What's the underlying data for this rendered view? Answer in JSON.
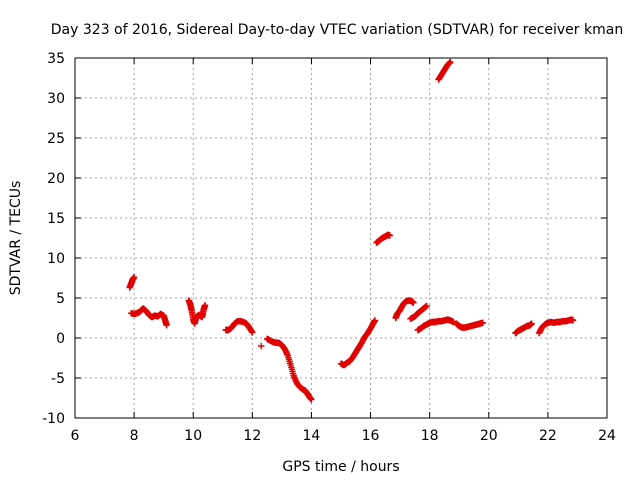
{
  "chart_data": {
    "type": "scatter",
    "title": "Day 323 of 2016, Sidereal Day-to-day VTEC variation (SDTVAR) for receiver kman",
    "xlabel": "GPS time / hours",
    "ylabel": "SDTVAR / TECUs",
    "xlim": [
      6,
      24
    ],
    "ylim": [
      -10,
      35
    ],
    "xticks": [
      6,
      8,
      10,
      12,
      14,
      16,
      18,
      20,
      22,
      24
    ],
    "yticks": [
      -10,
      -5,
      0,
      5,
      10,
      15,
      20,
      25,
      30,
      35
    ],
    "xtick_labels": [
      "6",
      "8",
      "10",
      "12",
      "14",
      "16",
      "18",
      "20",
      "22",
      "24"
    ],
    "ytick_labels": [
      "-10",
      "-5",
      "0",
      "5",
      "10",
      "15",
      "20",
      "25",
      "30",
      "35"
    ],
    "grid": true,
    "marker": "+",
    "color": "#e00000",
    "series": [
      {
        "name": "kman",
        "segments": [
          [
            [
              7.85,
              6.3
            ],
            [
              7.9,
              6.8
            ],
            [
              7.95,
              7.3
            ],
            [
              8.0,
              7.6
            ]
          ],
          [
            [
              7.9,
              3.1
            ],
            [
              8.0,
              3.0
            ],
            [
              8.1,
              3.1
            ],
            [
              8.2,
              3.3
            ],
            [
              8.3,
              3.7
            ],
            [
              8.4,
              3.4
            ],
            [
              8.5,
              2.9
            ],
            [
              8.6,
              2.6
            ],
            [
              8.7,
              2.8
            ],
            [
              8.8,
              2.7
            ],
            [
              8.9,
              3.0
            ],
            [
              9.0,
              2.8
            ],
            [
              9.05,
              2.2
            ],
            [
              9.1,
              1.6
            ]
          ],
          [
            [
              9.85,
              4.7
            ],
            [
              9.9,
              4.2
            ],
            [
              9.95,
              3.4
            ],
            [
              10.0,
              2.3
            ],
            [
              10.05,
              1.8
            ],
            [
              10.1,
              2.6
            ],
            [
              10.2,
              2.9
            ],
            [
              10.3,
              2.6
            ],
            [
              10.35,
              3.5
            ],
            [
              10.4,
              4.1
            ]
          ],
          [
            [
              11.1,
              1.0
            ],
            [
              11.2,
              1.0
            ],
            [
              11.3,
              1.3
            ],
            [
              11.4,
              1.8
            ],
            [
              11.5,
              2.1
            ],
            [
              11.6,
              2.1
            ],
            [
              11.7,
              2.0
            ],
            [
              11.8,
              1.8
            ],
            [
              11.9,
              1.3
            ],
            [
              12.0,
              0.7
            ]
          ],
          [
            [
              12.3,
              -1.0
            ]
          ],
          [
            [
              12.5,
              -0.1
            ],
            [
              12.6,
              -0.3
            ],
            [
              12.7,
              -0.5
            ],
            [
              12.8,
              -0.6
            ],
            [
              12.9,
              -0.6
            ],
            [
              13.0,
              -0.9
            ],
            [
              13.1,
              -1.4
            ],
            [
              13.2,
              -2.2
            ],
            [
              13.3,
              -3.4
            ],
            [
              13.4,
              -4.7
            ],
            [
              13.5,
              -5.6
            ],
            [
              13.6,
              -6.1
            ],
            [
              13.7,
              -6.4
            ],
            [
              13.8,
              -6.6
            ],
            [
              13.9,
              -7.2
            ],
            [
              14.0,
              -7.7
            ]
          ],
          [
            [
              15.0,
              -3.2
            ],
            [
              15.1,
              -3.4
            ],
            [
              15.2,
              -3.1
            ],
            [
              15.3,
              -2.9
            ],
            [
              15.4,
              -2.4
            ],
            [
              15.5,
              -1.8
            ],
            [
              15.6,
              -1.2
            ],
            [
              15.7,
              -0.6
            ],
            [
              15.8,
              0.1
            ],
            [
              15.9,
              0.6
            ],
            [
              16.0,
              1.2
            ],
            [
              16.1,
              1.9
            ],
            [
              16.15,
              2.2
            ]
          ],
          [
            [
              16.2,
              11.9
            ],
            [
              16.3,
              12.2
            ],
            [
              16.4,
              12.5
            ],
            [
              16.5,
              12.7
            ],
            [
              16.6,
              12.9
            ],
            [
              16.65,
              12.8
            ]
          ],
          [
            [
              16.85,
              2.5
            ],
            [
              16.9,
              3.0
            ],
            [
              17.0,
              3.5
            ],
            [
              17.1,
              4.2
            ],
            [
              17.2,
              4.6
            ],
            [
              17.3,
              4.7
            ],
            [
              17.4,
              4.6
            ],
            [
              17.45,
              4.4
            ]
          ],
          [
            [
              17.35,
              2.4
            ],
            [
              17.5,
              2.7
            ],
            [
              17.6,
              3.1
            ],
            [
              17.7,
              3.4
            ],
            [
              17.8,
              3.7
            ],
            [
              17.9,
              4.0
            ]
          ],
          [
            [
              17.6,
              1.0
            ],
            [
              17.7,
              1.2
            ],
            [
              17.8,
              1.5
            ],
            [
              17.9,
              1.7
            ],
            [
              18.0,
              1.9
            ],
            [
              18.1,
              2.0
            ],
            [
              18.2,
              2.0
            ],
            [
              18.3,
              2.1
            ],
            [
              18.4,
              2.1
            ],
            [
              18.5,
              2.2
            ],
            [
              18.6,
              2.3
            ],
            [
              18.7,
              2.2
            ],
            [
              18.8,
              2.0
            ]
          ],
          [
            [
              18.3,
              32.3
            ],
            [
              18.4,
              32.9
            ],
            [
              18.5,
              33.5
            ],
            [
              18.6,
              34.1
            ],
            [
              18.7,
              34.5
            ]
          ],
          [
            [
              18.9,
              1.8
            ],
            [
              19.0,
              1.5
            ],
            [
              19.1,
              1.3
            ],
            [
              19.2,
              1.3
            ],
            [
              19.3,
              1.4
            ],
            [
              19.4,
              1.5
            ],
            [
              19.5,
              1.6
            ],
            [
              19.6,
              1.7
            ],
            [
              19.7,
              1.8
            ],
            [
              19.8,
              1.9
            ]
          ],
          [
            [
              20.9,
              0.6
            ],
            [
              21.0,
              0.9
            ],
            [
              21.1,
              1.1
            ],
            [
              21.2,
              1.3
            ],
            [
              21.3,
              1.5
            ],
            [
              21.4,
              1.6
            ],
            [
              21.45,
              1.8
            ]
          ],
          [
            [
              21.7,
              0.6
            ],
            [
              21.8,
              1.3
            ],
            [
              21.9,
              1.7
            ],
            [
              22.0,
              1.9
            ],
            [
              22.1,
              2.0
            ],
            [
              22.2,
              1.9
            ],
            [
              22.3,
              2.0
            ],
            [
              22.4,
              2.0
            ],
            [
              22.5,
              2.1
            ],
            [
              22.6,
              2.1
            ],
            [
              22.7,
              2.2
            ],
            [
              22.8,
              2.3
            ],
            [
              22.85,
              2.2
            ]
          ]
        ]
      }
    ]
  }
}
